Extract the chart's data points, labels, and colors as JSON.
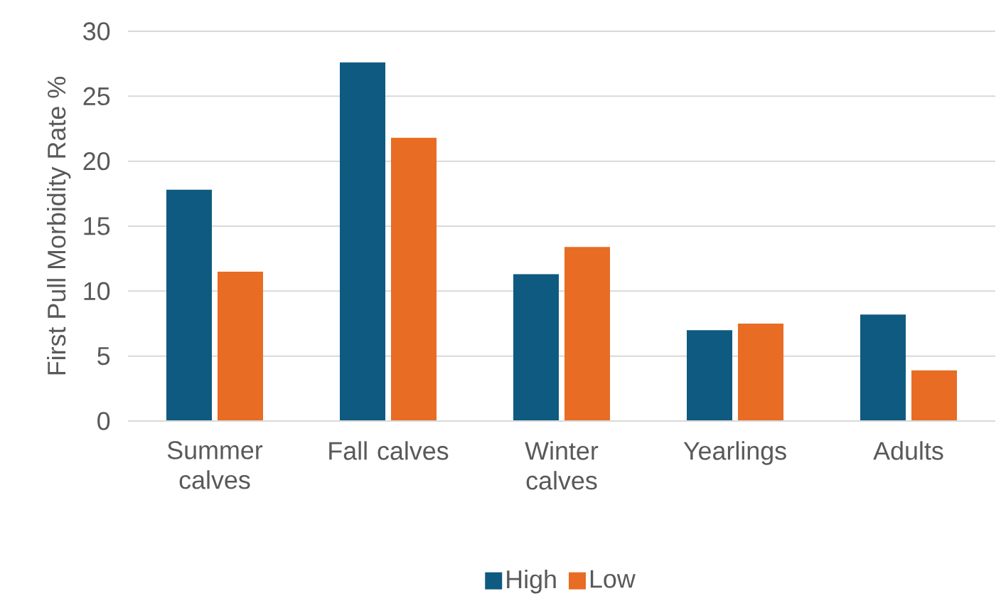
{
  "chart_data": {
    "type": "bar",
    "ylabel": "First Pull Morbidity Rate %",
    "categories": [
      "Summer calves",
      "Fall calves",
      "Winter calves",
      "Yearlings",
      "Adults"
    ],
    "series": [
      {
        "name": "High",
        "color": "#0f5a80",
        "values": [
          17.8,
          27.6,
          11.3,
          7.0,
          8.2
        ]
      },
      {
        "name": "Low",
        "color": "#e86c23",
        "values": [
          11.5,
          21.8,
          13.4,
          7.5,
          3.9
        ]
      }
    ],
    "ylim": [
      0,
      30
    ],
    "yticks": [
      0,
      5,
      10,
      15,
      20,
      25,
      30
    ],
    "grid": "y",
    "legend": "bottom"
  }
}
